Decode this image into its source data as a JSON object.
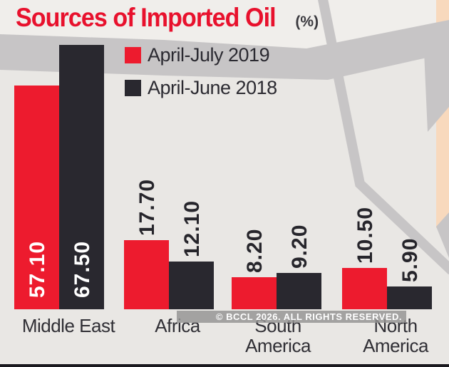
{
  "header": {
    "title": "Sources of Imported Oil",
    "unit": "(%)"
  },
  "legend": [
    {
      "label": "April-July 2019",
      "color": "#ed1b2e"
    },
    {
      "label": "April-June 2018",
      "color": "#29282f"
    }
  ],
  "chart_data": {
    "type": "bar",
    "title": "Sources of Imported Oil",
    "unit": "%",
    "categories": [
      "Middle East",
      "Africa",
      "South America",
      "North America"
    ],
    "series": [
      {
        "name": "April-July 2019",
        "color": "#ed1b2e",
        "values": [
          57.1,
          17.7,
          8.2,
          10.5
        ]
      },
      {
        "name": "April-June 2018",
        "color": "#29282f",
        "values": [
          67.5,
          12.1,
          9.2,
          5.9
        ]
      }
    ],
    "value_label_decimals": 2,
    "value_label_placement": "inside-white for Middle East, above-dark for others",
    "ylim": [
      0,
      70
    ],
    "grid": false,
    "legend_position": "top-left area beside tallest bars"
  },
  "watermark": "© BCCL 2026. ALL RIGHTS RESERVED.",
  "colors": {
    "title_red": "#e8112d",
    "bar_red": "#ed1b2e",
    "bar_black": "#29282f",
    "background": "#e9e7e4",
    "map_road_gray": "#c7c5c6",
    "map_peach": "#f8d9bd",
    "label_dark": "#26252b",
    "label_white": "#ffffff"
  }
}
